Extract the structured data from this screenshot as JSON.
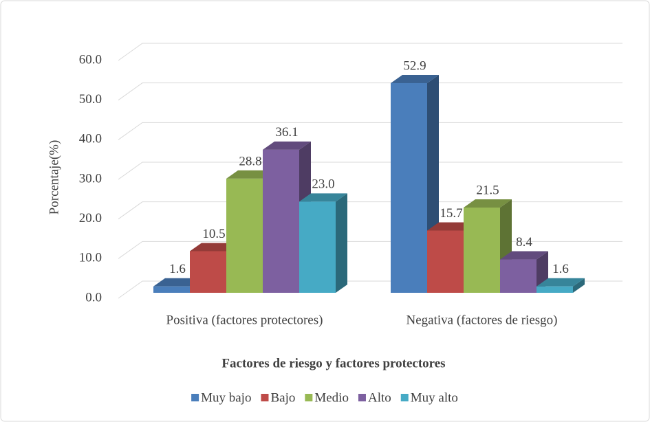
{
  "chart_data": {
    "type": "bar3d",
    "title": "Factores de riesgo y factores protectores",
    "y_label": "Porcentaje(%)",
    "categories": [
      "Positiva (factores protectores)",
      "Negativa (factores de riesgo)"
    ],
    "series": [
      {
        "name": "Muy bajo",
        "color": "#4a7ebb",
        "values": [
          1.6,
          52.9
        ]
      },
      {
        "name": "Bajo",
        "color": "#be4b48",
        "values": [
          10.5,
          15.7
        ]
      },
      {
        "name": "Medio",
        "color": "#98b954",
        "values": [
          28.8,
          21.5
        ]
      },
      {
        "name": "Alto",
        "color": "#7d60a0",
        "values": [
          36.1,
          8.4
        ]
      },
      {
        "name": "Muy alto",
        "color": "#46aac5",
        "values": [
          23.0,
          1.6
        ],
        "value_labels": [
          "23.0",
          "1.6"
        ]
      }
    ],
    "ylim": [
      0,
      60
    ],
    "yticks": [
      {
        "value": 0,
        "label": "0.0"
      },
      {
        "value": 10,
        "label": "10.0"
      },
      {
        "value": 20,
        "label": "20.0"
      },
      {
        "value": 30,
        "label": "30.0"
      },
      {
        "value": 40,
        "label": "40.0"
      },
      {
        "value": 50,
        "label": "50.0"
      },
      {
        "value": 60,
        "label": "60.0"
      }
    ],
    "grid": true,
    "legend": "bottom"
  }
}
